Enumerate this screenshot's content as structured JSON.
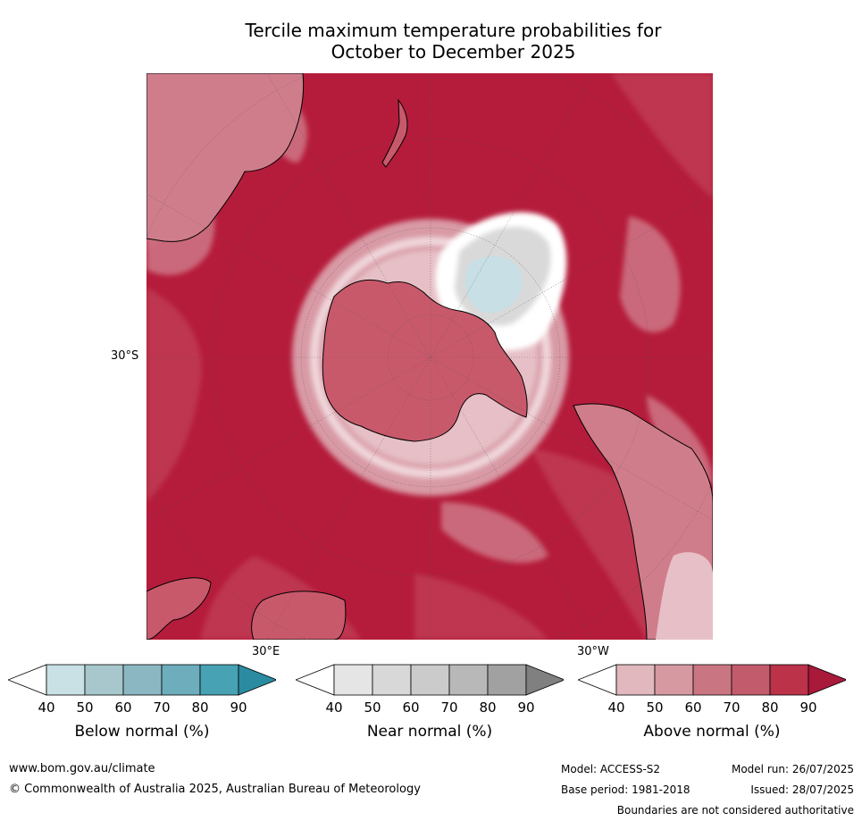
{
  "title": {
    "line1": "Tercile maximum temperature probabilities for",
    "line2": "October to December 2025"
  },
  "map": {
    "projection": "south-polar-stereographic",
    "lat_label": "30°S",
    "lon_labels": {
      "east": "30°E",
      "west": "30°W"
    },
    "colors": {
      "ocean_above_90": "#b51c3b",
      "above_80": "#c03a52",
      "above_70": "#c8596b",
      "above_60": "#d07d8b",
      "above_50": "#dca3ad",
      "above_40": "#e6c0c6",
      "near_grey": "#d9d9d9",
      "below_light": "#c7dfe5",
      "coast": "#000000"
    }
  },
  "colorbars": [
    {
      "name": "below",
      "title": "Below normal (%)",
      "ticks": [
        "40",
        "50",
        "60",
        "70",
        "80",
        "90"
      ],
      "colors": [
        "#ffffff",
        "#c9e0e5",
        "#a7c7cc",
        "#8ab7c2",
        "#6dadbc",
        "#47a2b3",
        "#2b8ba1"
      ]
    },
    {
      "name": "near",
      "title": "Near normal (%)",
      "ticks": [
        "40",
        "50",
        "60",
        "70",
        "80",
        "90"
      ],
      "colors": [
        "#ffffff",
        "#e5e5e5",
        "#d8d8d8",
        "#cbcbcb",
        "#b8b8b8",
        "#a1a1a1",
        "#808080"
      ]
    },
    {
      "name": "above",
      "title": "Above normal (%)",
      "ticks": [
        "40",
        "50",
        "60",
        "70",
        "80",
        "90"
      ],
      "colors": [
        "#ffffff",
        "#e0b8bd",
        "#d699a1",
        "#ca7682",
        "#c25b6b",
        "#bb3249",
        "#a8193a"
      ]
    }
  ],
  "footer": {
    "website": "www.bom.gov.au/climate",
    "copyright": "© Commonwealth of Australia 2025, Australian Bureau of Meteorology",
    "model": "Model: ACCESS-S2",
    "base_period": "Base period: 1981-2018",
    "model_run": "Model run: 26/07/2025",
    "issued": "Issued: 28/07/2025",
    "disclaimer": "Boundaries are not considered authoritative"
  }
}
